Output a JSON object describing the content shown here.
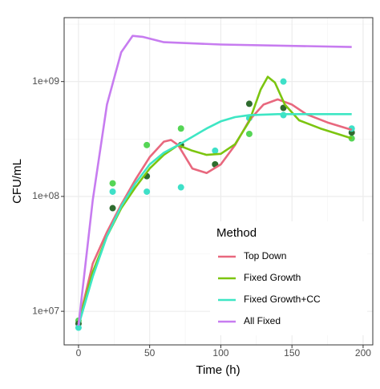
{
  "chart_data": {
    "type": "line",
    "xlabel": "Time (h)",
    "ylabel": "CFU/mL",
    "xlim": [
      -10.1,
      206.8
    ],
    "xticks": [
      0,
      50,
      100,
      150,
      200
    ],
    "x_minor_ticks": [
      25,
      75,
      125,
      175
    ],
    "ylim": [
      5100000,
      3600000000
    ],
    "log_y": true,
    "yticks": [
      {
        "value": 10000000,
        "label": "1e+07"
      },
      {
        "value": 100000000,
        "label": "1e+08"
      },
      {
        "value": 1000000000,
        "label": "1e+09"
      }
    ],
    "y_minor_ticks": [
      31620000,
      316200000,
      3162000000
    ],
    "grid": true,
    "legend_title": "Method",
    "legend_position": "inside-bottom-right",
    "series": [
      {
        "name": "Top Down",
        "color": "#e8687e",
        "x": [
          0,
          10,
          20,
          30,
          40,
          50,
          60,
          65,
          70,
          80,
          90,
          100,
          110,
          120,
          130,
          140,
          150,
          160,
          175,
          192
        ],
        "values": [
          7900000,
          26000000,
          49000000,
          85000000,
          140000000,
          220000000,
          300000000,
          310000000,
          280000000,
          175000000,
          160000000,
          190000000,
          280000000,
          460000000,
          630000000,
          700000000,
          630000000,
          520000000,
          440000000,
          380000000
        ]
      },
      {
        "name": "Fixed Growth",
        "color": "#7cc510",
        "x": [
          0,
          10,
          20,
          30,
          40,
          50,
          60,
          70,
          80,
          90,
          100,
          110,
          120,
          128,
          133,
          138,
          145,
          155,
          170,
          192
        ],
        "values": [
          7900000,
          22000000,
          45000000,
          79000000,
          120000000,
          175000000,
          230000000,
          280000000,
          250000000,
          230000000,
          235000000,
          285000000,
          450000000,
          850000000,
          1100000000,
          980000000,
          630000000,
          460000000,
          390000000,
          320000000
        ]
      },
      {
        "name": "Fixed Growth+CC",
        "color": "#3ee6c4",
        "x": [
          0,
          10,
          20,
          30,
          40,
          50,
          60,
          70,
          80,
          90,
          100,
          110,
          120,
          140,
          192
        ],
        "values": [
          7500000,
          20000000,
          45000000,
          82000000,
          130000000,
          190000000,
          240000000,
          280000000,
          330000000,
          390000000,
          450000000,
          490000000,
          510000000,
          520000000,
          520000000
        ]
      },
      {
        "name": "All Fixed",
        "color": "#c77cf0",
        "x": [
          0,
          10,
          20,
          30,
          38,
          45,
          60,
          100,
          192
        ],
        "values": [
          7500000,
          93000000,
          630000000,
          1800000000,
          2500000000,
          2450000000,
          2200000000,
          2100000000,
          2000000000
        ]
      }
    ],
    "points": {
      "x": [
        0,
        0,
        0,
        24,
        24,
        24,
        48,
        48,
        48,
        72,
        72,
        72,
        96,
        96,
        96,
        120,
        120,
        120,
        144,
        144,
        144,
        192,
        192,
        192
      ],
      "values": [
        8300000,
        7800000,
        7200000,
        130000000,
        110000000,
        79000000,
        280000000,
        150000000,
        110000000,
        390000000,
        280000000,
        120000000,
        190000000,
        190000000,
        250000000,
        640000000,
        350000000,
        480000000,
        1000000000,
        590000000,
        510000000,
        320000000,
        360000000,
        390000000
      ],
      "colors": [
        "#55d555",
        "#2e6b2e",
        "#3ee0c8",
        "#55d555",
        "#3ee0c8",
        "#2e6b2e",
        "#55d555",
        "#2e6b2e",
        "#3ee0c8",
        "#55d555",
        "#2e6b2e",
        "#3ee0c8",
        "#55d555",
        "#2e6b2e",
        "#3ee0c8",
        "#2e6b2e",
        "#55d555",
        "#3ee0c8",
        "#3ee0c8",
        "#2e6b2e",
        "#3ee0c8",
        "#55d555",
        "#2e6b2e",
        "#3ee0c8"
      ]
    }
  }
}
